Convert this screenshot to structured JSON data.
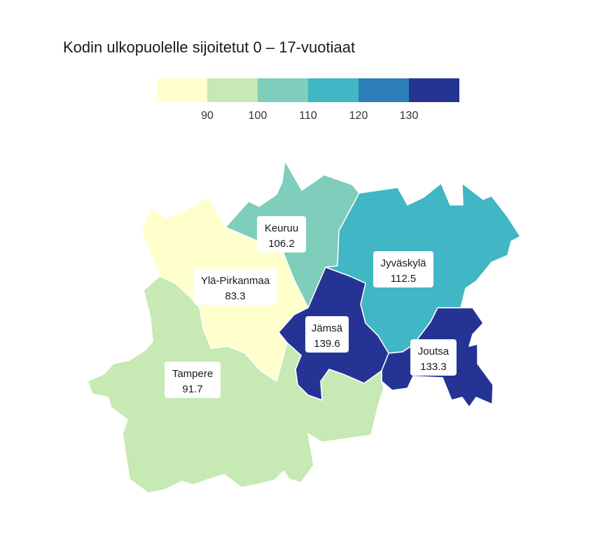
{
  "title": "Kodin ulkopuolelle sijoitetut 0 – 17-vuotiaat",
  "legend": {
    "colors": [
      "#ffffcc",
      "#c7e9b4",
      "#7fcdbb",
      "#41b6c4",
      "#2c7fb8",
      "#253494"
    ],
    "ticks": [
      "90",
      "100",
      "110",
      "120",
      "130"
    ]
  },
  "regions": [
    {
      "name": "Keuruu",
      "value": "106.2",
      "color": "#7fcdbb"
    },
    {
      "name": "Jyväskylä",
      "value": "112.5",
      "color": "#41b6c4"
    },
    {
      "name": "Ylä-Pirkanmaa",
      "value": "83.3",
      "color": "#ffffcc"
    },
    {
      "name": "Jämsä",
      "value": "139.6",
      "color": "#253494"
    },
    {
      "name": "Joutsa",
      "value": "133.3",
      "color": "#253494"
    },
    {
      "name": "Tampere",
      "value": "91.7",
      "color": "#c7e9b4"
    }
  ]
}
